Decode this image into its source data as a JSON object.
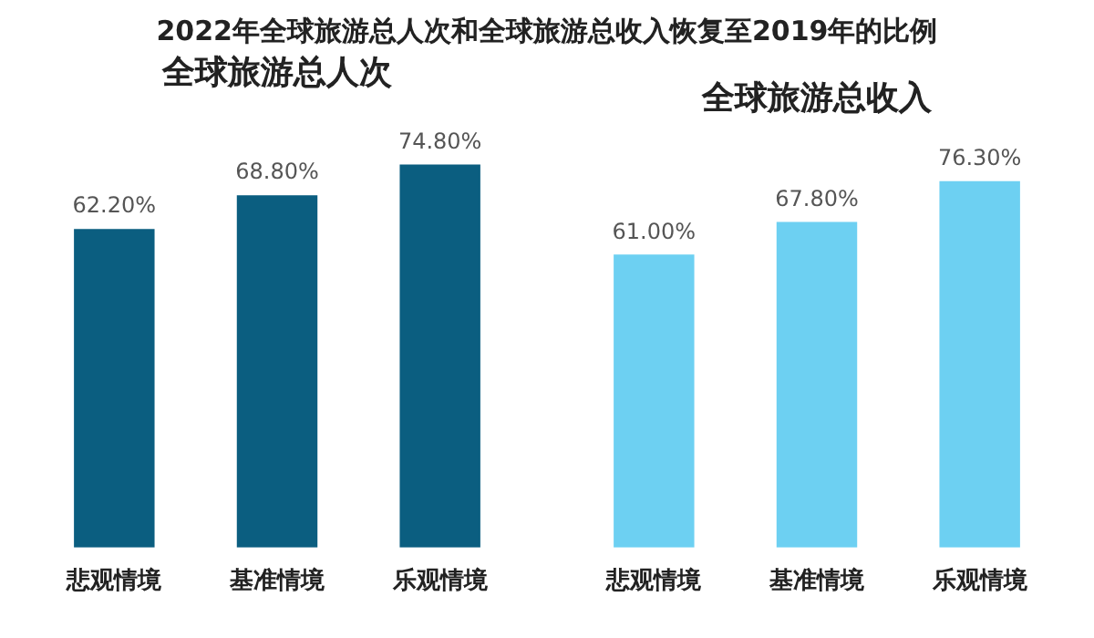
{
  "chart_data": [
    {
      "type": "bar",
      "title": "全球旅游总人次",
      "categories": [
        "悲观情境",
        "基准情境",
        "乐观情境"
      ],
      "values": [
        62.2,
        68.8,
        74.8
      ],
      "value_labels": [
        "62.20%",
        "68.80%",
        "74.80%"
      ],
      "color": "#0b5e80",
      "grid": false,
      "legend": false
    },
    {
      "type": "bar",
      "title": "全球旅游总收入",
      "categories": [
        "悲观情境",
        "基准情境",
        "乐观情境"
      ],
      "values": [
        61.0,
        67.8,
        76.3
      ],
      "value_labels": [
        "61.00%",
        "67.80%",
        "76.30%"
      ],
      "color": "#6dd0f2",
      "grid": false,
      "legend": false,
      "annotations": [
        "2022年全球旅游总人次和全球旅游总收入恢复至2019年的比例"
      ]
    }
  ]
}
